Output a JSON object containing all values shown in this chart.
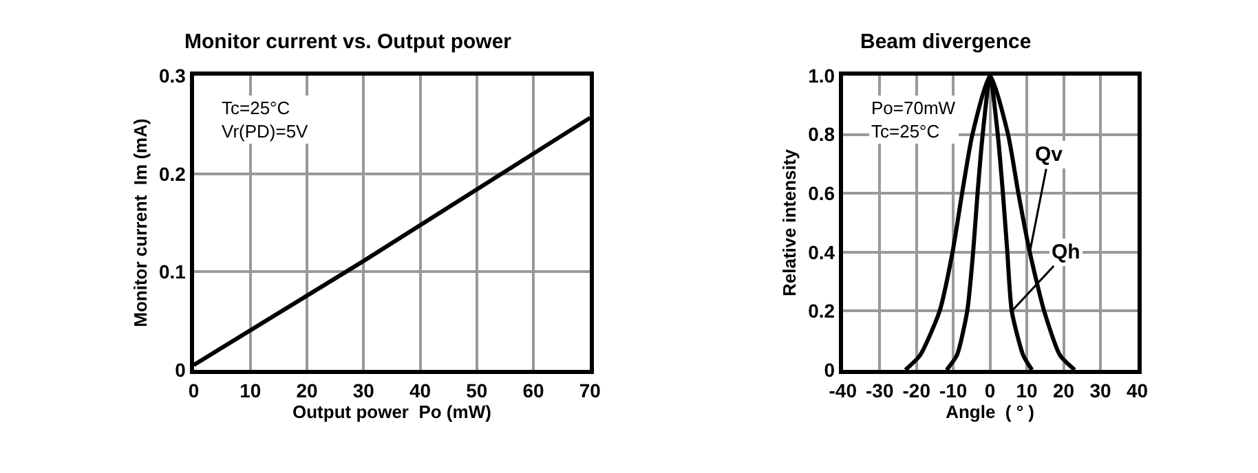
{
  "chart_data": [
    {
      "type": "line",
      "title": "Monitor current vs. Output power",
      "xlabel": "Output power  Po (mW)",
      "ylabel": "Monitor current  Im (mA)",
      "x": [
        0,
        30,
        70
      ],
      "series": [
        {
          "color": "#000000",
          "values": [
            0.005,
            0.111,
            0.257
          ]
        }
      ],
      "xlim": [
        0,
        70
      ],
      "xticks": [
        0,
        10,
        20,
        30,
        40,
        50,
        60,
        70
      ],
      "ylim": [
        0,
        0.3
      ],
      "yticks": [
        0,
        0.1,
        0.2,
        0.3
      ],
      "annotations": [
        "Tc=25°C",
        "Vr(PD)=5V"
      ],
      "grid": true
    },
    {
      "type": "line",
      "title": "Beam divergence",
      "xlabel": "Angle  ( ° )",
      "ylabel": "Relative intensity",
      "series": [
        {
          "name": "Qv",
          "color": "#000000",
          "x": [
            -23,
            -19,
            -13.7,
            -10.2,
            -7.6,
            -4.8,
            0,
            4.9,
            7.7,
            10.8,
            14.7,
            19,
            23
          ],
          "values": [
            0,
            0.05,
            0.2,
            0.4,
            0.6,
            0.8,
            1.0,
            0.8,
            0.6,
            0.4,
            0.2,
            0.05,
            0
          ]
        },
        {
          "name": "Qh",
          "color": "#000000",
          "x": [
            -11.8,
            -9,
            -6.2,
            -4.6,
            -3.4,
            -2,
            0,
            2.1,
            3.5,
            4.7,
            5.9,
            9,
            11.4
          ],
          "values": [
            0,
            0.05,
            0.2,
            0.4,
            0.6,
            0.8,
            1.0,
            0.8,
            0.6,
            0.4,
            0.2,
            0.05,
            0
          ]
        }
      ],
      "xlim": [
        -40,
        40
      ],
      "xticks": [
        -40,
        -30,
        -20,
        -10,
        0,
        10,
        20,
        30,
        40
      ],
      "ylim": [
        0,
        1.0
      ],
      "yticks": [
        0,
        0.2,
        0.4,
        0.6,
        0.8,
        {
          "value": 1.0,
          "label": "1.0"
        }
      ],
      "annotations": [
        "Po=70mW",
        "Tc=25°C"
      ],
      "grid": true
    }
  ]
}
